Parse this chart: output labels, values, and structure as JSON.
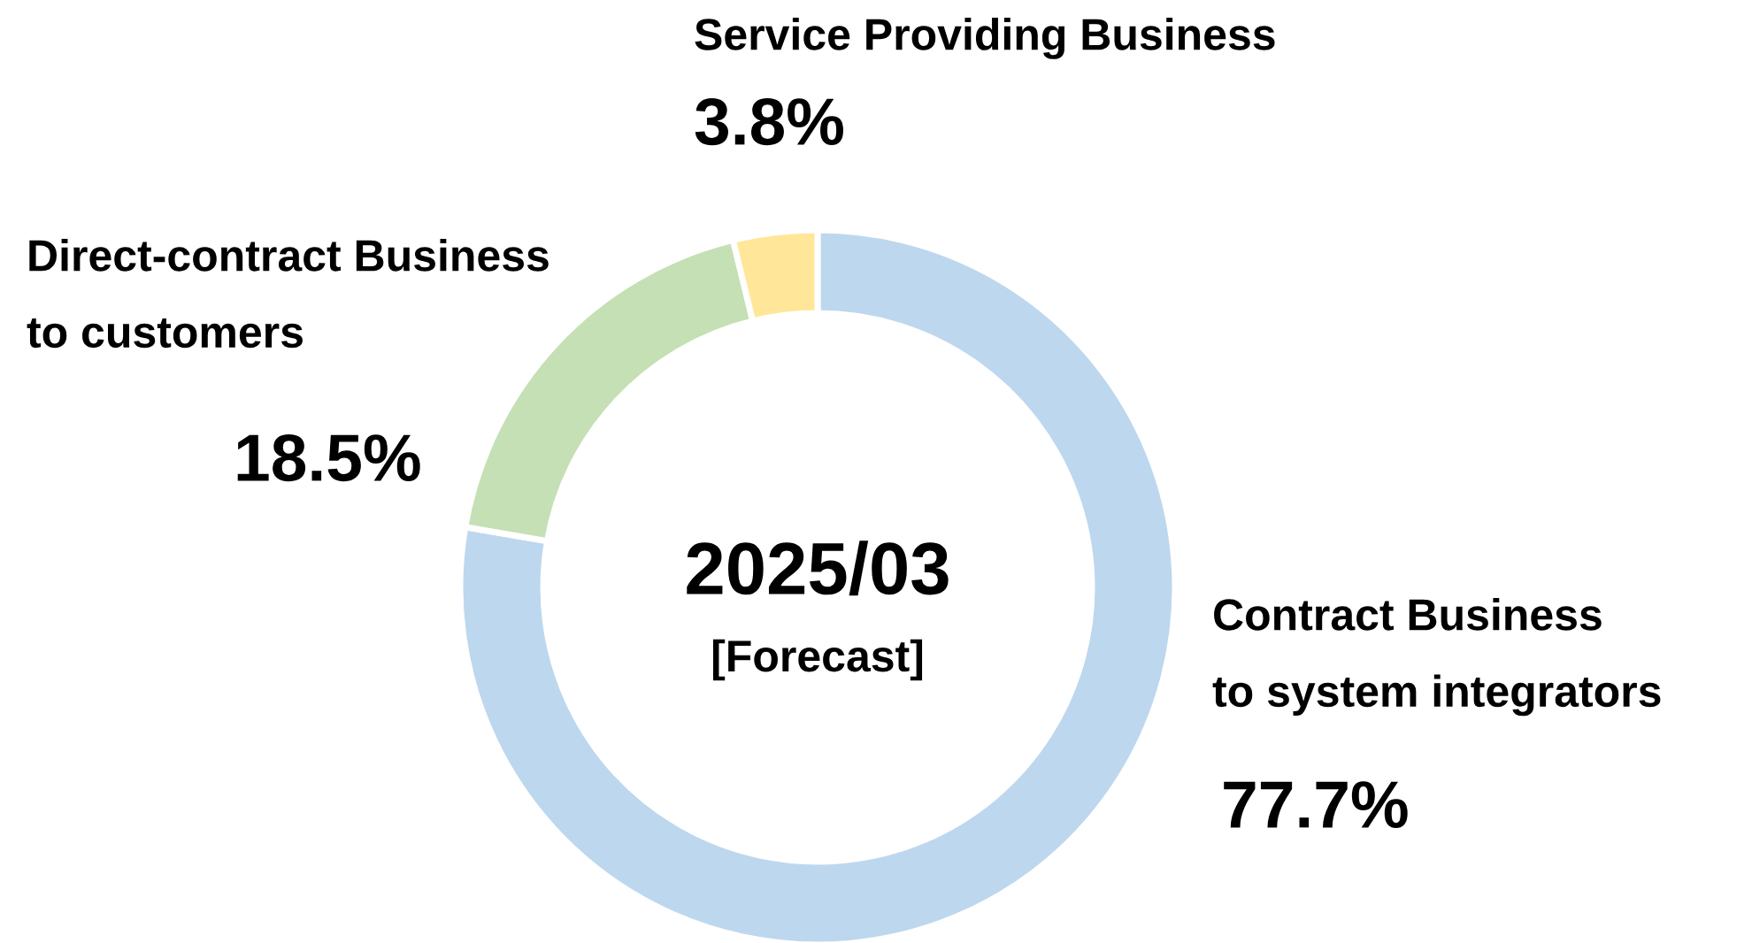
{
  "chart_data": {
    "type": "donut",
    "title": "2025/03",
    "subtitle": "[Forecast]",
    "categories": [
      "Contract Business\nto system integrators",
      "Direct-contract Business\nto customers",
      "Service Providing Business"
    ],
    "values": [
      77.7,
      18.5,
      3.8
    ],
    "colors": [
      "#bdd7ee",
      "#c5e0b4",
      "#ffe699"
    ],
    "value_labels": [
      "77.7%",
      "18.5%",
      "3.8%"
    ],
    "legend": false
  }
}
